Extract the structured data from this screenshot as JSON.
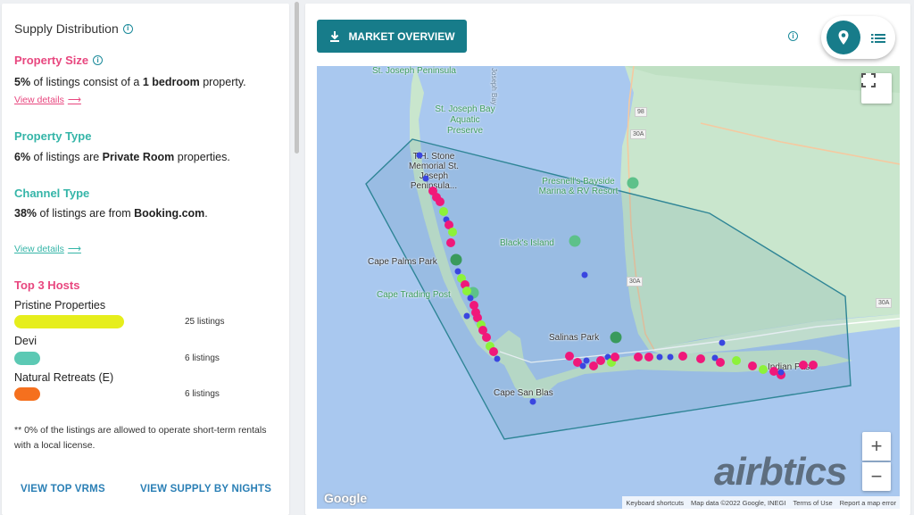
{
  "left": {
    "title": "Supply Distribution",
    "property_size": {
      "heading": "Property Size",
      "value": "5%",
      "text_pre": " of listings consist of a ",
      "highlight": "1 bedroom",
      "text_post": " property.",
      "link": "View details"
    },
    "property_type": {
      "heading": "Property Type",
      "value": "6%",
      "text_pre": " of listings are ",
      "highlight": "Private Room",
      "text_post": " properties."
    },
    "channel_type": {
      "heading": "Channel Type",
      "value": "38%",
      "text_pre": " of listings are from ",
      "highlight": "Booking.com",
      "text_post": ".",
      "link": "View details"
    },
    "top_hosts": {
      "heading": "Top 3 Hosts",
      "hosts": [
        {
          "name": "Pristine Properties",
          "count": "25 listings",
          "color": "#e6ee1c",
          "share": 1.0
        },
        {
          "name": "Devi",
          "count": "6 listings",
          "color": "#5cc9b4",
          "share": 0.24
        },
        {
          "name": "Natural Retreats (E)",
          "count": "6 listings",
          "color": "#f5701e",
          "share": 0.24
        }
      ]
    },
    "footnote": "** 0% of the listings are allowed to operate short-term rentals with a local license.",
    "buttons": {
      "vrms": "VIEW TOP VRMS",
      "nights": "VIEW SUPPLY BY NIGHTS"
    }
  },
  "colors": {
    "pink": "#e8477f",
    "teal": "#35b5a8",
    "accent": "#177c8a",
    "link_blue": "#2a7fb5",
    "marker_pink": "#f0187a",
    "marker_blue": "#3a46e0",
    "marker_lime": "#8cf23a"
  },
  "right": {
    "market_button": "MARKET OVERVIEW",
    "toggle": {
      "active": "map",
      "map_icon": "map-pin-icon",
      "list_icon": "list-icon"
    }
  },
  "map": {
    "labels": {
      "st_joseph_peninsula_top": "St. Joseph Peninsula",
      "joseph_bay": "Joseph Bay",
      "st_joseph_bay_preserve": "St. Joseph Bay Aquatic Preserve",
      "stone_memorial": "T.H. Stone Memorial St. Joseph Peninsula...",
      "presnells": "Presnell's Bayside Marina & RV Resort",
      "blacks_island": "Black's Island",
      "cape_palms_park": "Cape Palms Park",
      "cape_trading_post": "Cape Trading Post",
      "salinas_park": "Salinas Park",
      "indian_pass": "Indian Pass",
      "cape_san_blas": "Cape San Blas"
    },
    "roads": [
      "98",
      "30A",
      "30A",
      "30A"
    ],
    "attribution": {
      "keyboard": "Keyboard shortcuts",
      "data": "Map data ©2022 Google, INEGI",
      "terms": "Terms of Use",
      "report": "Report a map error"
    },
    "google": "Google",
    "watermark": "airbtics"
  }
}
